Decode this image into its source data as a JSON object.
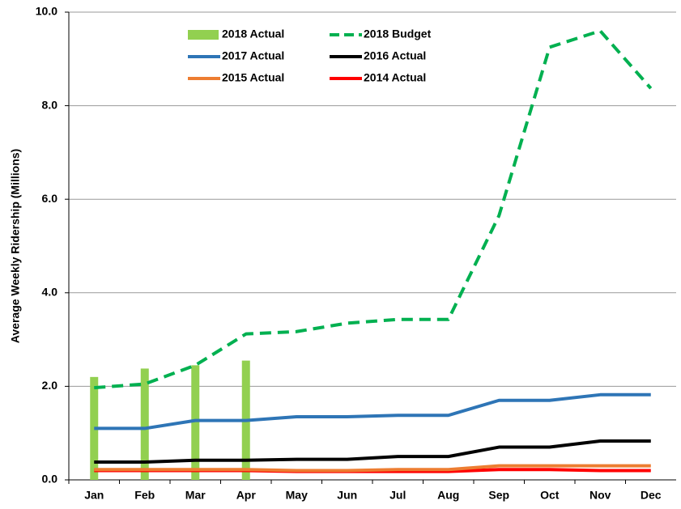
{
  "chart_data": {
    "type": "bar",
    "y_label": "Average Weekly Ridership (Millions)",
    "categories": [
      "Jan",
      "Feb",
      "Mar",
      "Apr",
      "May",
      "Jun",
      "Jul",
      "Aug",
      "Sep",
      "Oct",
      "Nov",
      "Dec"
    ],
    "ylim": [
      0,
      10
    ],
    "yticks": [
      {
        "value": 0,
        "label": "0.0"
      },
      {
        "value": 2,
        "label": "2.0"
      },
      {
        "value": 4,
        "label": "4.0"
      },
      {
        "value": 6,
        "label": "6.0"
      },
      {
        "value": 8,
        "label": "8.0"
      },
      {
        "value": 10,
        "label": "10.0"
      }
    ],
    "grid": true,
    "series": [
      {
        "name": "2018 Actual",
        "type": "bar",
        "color": "#92d050",
        "values": [
          2.2,
          2.38,
          2.45,
          2.55,
          null,
          null,
          null,
          null,
          null,
          null,
          null,
          null
        ]
      },
      {
        "name": "2018 Budget",
        "type": "line",
        "dashed": true,
        "color": "#00b050",
        "values": [
          1.97,
          2.05,
          2.45,
          3.12,
          3.17,
          3.35,
          3.43,
          3.43,
          5.65,
          9.25,
          9.6,
          8.37
        ]
      },
      {
        "name": "2017 Actual",
        "type": "line",
        "color": "#2e75b6",
        "values": [
          1.1,
          1.1,
          1.27,
          1.27,
          1.35,
          1.35,
          1.38,
          1.38,
          1.7,
          1.7,
          1.82,
          1.82
        ]
      },
      {
        "name": "2016 Actual",
        "type": "line",
        "color": "#000000",
        "values": [
          0.38,
          0.38,
          0.42,
          0.42,
          0.44,
          0.44,
          0.5,
          0.5,
          0.7,
          0.7,
          0.83,
          0.83
        ]
      },
      {
        "name": "2015 Actual",
        "type": "line",
        "color": "#ed7d31",
        "values": [
          0.22,
          0.22,
          0.22,
          0.22,
          0.2,
          0.2,
          0.22,
          0.22,
          0.3,
          0.3,
          0.3,
          0.3
        ]
      },
      {
        "name": "2014 Actual",
        "type": "line",
        "color": "#ff0000",
        "values": [
          0.2,
          0.2,
          0.2,
          0.2,
          0.18,
          0.18,
          0.18,
          0.18,
          0.22,
          0.22,
          0.2,
          0.2
        ]
      }
    ]
  }
}
